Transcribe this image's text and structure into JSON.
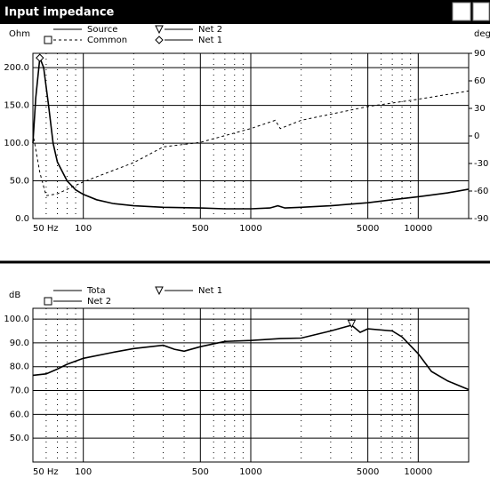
{
  "chart_data": [
    {
      "type": "line",
      "title": "Input impedance",
      "ylabel": "Ohm",
      "y2label": "deg",
      "xscale": "log",
      "xlim": [
        50,
        20000
      ],
      "xticks": [
        {
          "value": 50,
          "label": "50 Hz"
        },
        100,
        500,
        1000,
        5000,
        10000
      ],
      "xminor": [
        60,
        70,
        80,
        90,
        200,
        300,
        400,
        600,
        700,
        800,
        900,
        2000,
        3000,
        4000,
        6000,
        7000,
        8000,
        9000,
        20000
      ],
      "ylim": [
        0,
        219
      ],
      "yticks": [
        {
          "value": 0,
          "label": "0.0"
        },
        {
          "value": 50,
          "label": "50.0"
        },
        {
          "value": 100,
          "label": "100.0"
        },
        {
          "value": 150,
          "label": "150.0"
        },
        {
          "value": 200,
          "label": "200.0"
        }
      ],
      "y2lim": [
        -90,
        90
      ],
      "y2ticks": [
        -90,
        -60,
        -30,
        0,
        30,
        60,
        90
      ],
      "grid": true,
      "series": [
        {
          "name": "Source",
          "color": "#000000",
          "dash": "solid",
          "x": [
            50,
            52,
            55,
            58,
            62,
            66,
            70,
            80,
            90,
            100,
            120,
            150,
            200,
            300,
            500,
            700,
            1000,
            1300,
            1450,
            1600,
            2000,
            3000,
            5000,
            7000,
            10000,
            15000,
            20000
          ],
          "values": [
            100,
            160,
            213,
            200,
            150,
            100,
            75,
            50,
            38,
            32,
            25,
            20,
            17,
            15,
            14,
            13,
            13,
            14,
            17,
            14,
            15,
            17,
            21,
            25,
            29,
            34,
            39
          ]
        },
        {
          "name": "Net 2",
          "color": "#000000",
          "marker": "triangle"
        },
        {
          "name": "Common",
          "color": "#000000",
          "dash": "dashed",
          "marker": "square",
          "axis": "y2",
          "x": [
            50,
            55,
            60,
            70,
            100,
            200,
            300,
            500,
            1000,
            1400,
            1500,
            2000,
            5000,
            10000,
            20000
          ],
          "values": [
            3,
            -40,
            -65,
            -63,
            -50,
            -29,
            -12,
            -7,
            8,
            17,
            8,
            17,
            32,
            40,
            49
          ]
        },
        {
          "name": "Net 1",
          "color": "#000000",
          "marker": "diamond",
          "x": [
            55
          ],
          "values": [
            213
          ]
        }
      ]
    },
    {
      "type": "line",
      "ylabel": "dB",
      "xscale": "log",
      "xlim": [
        50,
        20000
      ],
      "xticks": [
        {
          "value": 50,
          "label": "50 Hz"
        },
        100,
        500,
        1000,
        5000,
        10000
      ],
      "xminor": [
        60,
        70,
        80,
        90,
        200,
        300,
        400,
        600,
        700,
        800,
        900,
        2000,
        3000,
        4000,
        6000,
        7000,
        8000,
        9000,
        20000
      ],
      "ylim": [
        40,
        104.5
      ],
      "yticks": [
        {
          "value": 50,
          "label": "50.0"
        },
        {
          "value": 60,
          "label": "60.0"
        },
        {
          "value": 70,
          "label": "70.0"
        },
        {
          "value": 80,
          "label": "80.0"
        },
        {
          "value": 90,
          "label": "90.0"
        },
        {
          "value": 100,
          "label": "100.0"
        }
      ],
      "grid": true,
      "series": [
        {
          "name": "Tota",
          "color": "#000000",
          "dash": "solid",
          "x": [
            50,
            60,
            70,
            80,
            100,
            150,
            200,
            300,
            350,
            400,
            500,
            700,
            1000,
            1500,
            2000,
            3000,
            4000,
            4500,
            5000,
            7000,
            8000,
            10000,
            12000,
            15000,
            20000
          ],
          "values": [
            76.4,
            77,
            79,
            81,
            83.5,
            86,
            87.6,
            89,
            87.3,
            86.5,
            88.4,
            90.6,
            91,
            91.8,
            92,
            95,
            97.4,
            94.4,
            95.9,
            95,
            92.5,
            85.4,
            78,
            74,
            70.4
          ]
        },
        {
          "name": "Net 1",
          "color": "#000000",
          "marker": "triangle",
          "x": [
            4000
          ],
          "values": [
            98
          ]
        },
        {
          "name": "Net 2",
          "color": "#000000",
          "marker": "square"
        }
      ]
    }
  ]
}
